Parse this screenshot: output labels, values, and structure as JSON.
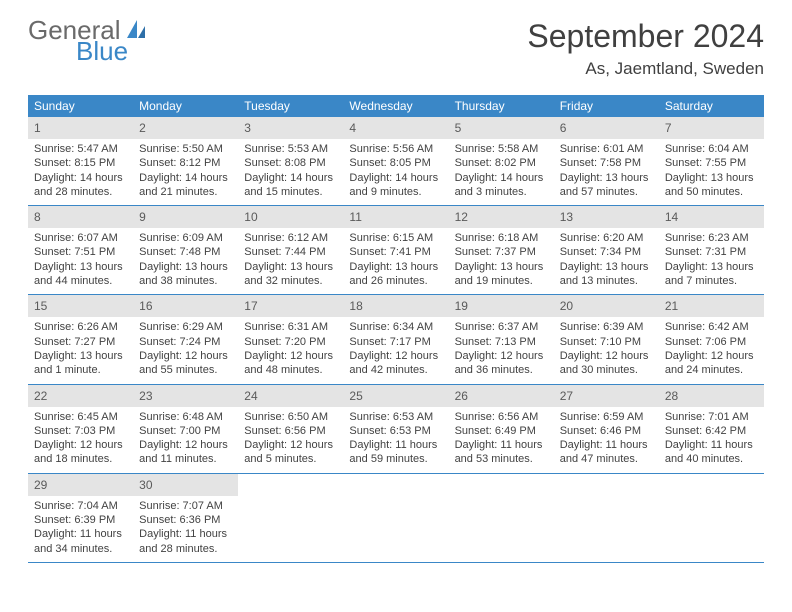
{
  "logo": {
    "general": "General",
    "blue": "Blue"
  },
  "title": "September 2024",
  "location": "As, Jaemtland, Sweden",
  "colors": {
    "header_bg": "#3a87c7",
    "daynum_bg": "#e4e4e4",
    "text": "#424242",
    "rule": "#3a87c7"
  },
  "weekdays": [
    "Sunday",
    "Monday",
    "Tuesday",
    "Wednesday",
    "Thursday",
    "Friday",
    "Saturday"
  ],
  "days": {
    "d1": {
      "n": "1",
      "sr": "Sunrise: 5:47 AM",
      "ss": "Sunset: 8:15 PM",
      "dl1": "Daylight: 14 hours",
      "dl2": "and 28 minutes."
    },
    "d2": {
      "n": "2",
      "sr": "Sunrise: 5:50 AM",
      "ss": "Sunset: 8:12 PM",
      "dl1": "Daylight: 14 hours",
      "dl2": "and 21 minutes."
    },
    "d3": {
      "n": "3",
      "sr": "Sunrise: 5:53 AM",
      "ss": "Sunset: 8:08 PM",
      "dl1": "Daylight: 14 hours",
      "dl2": "and 15 minutes."
    },
    "d4": {
      "n": "4",
      "sr": "Sunrise: 5:56 AM",
      "ss": "Sunset: 8:05 PM",
      "dl1": "Daylight: 14 hours",
      "dl2": "and 9 minutes."
    },
    "d5": {
      "n": "5",
      "sr": "Sunrise: 5:58 AM",
      "ss": "Sunset: 8:02 PM",
      "dl1": "Daylight: 14 hours",
      "dl2": "and 3 minutes."
    },
    "d6": {
      "n": "6",
      "sr": "Sunrise: 6:01 AM",
      "ss": "Sunset: 7:58 PM",
      "dl1": "Daylight: 13 hours",
      "dl2": "and 57 minutes."
    },
    "d7": {
      "n": "7",
      "sr": "Sunrise: 6:04 AM",
      "ss": "Sunset: 7:55 PM",
      "dl1": "Daylight: 13 hours",
      "dl2": "and 50 minutes."
    },
    "d8": {
      "n": "8",
      "sr": "Sunrise: 6:07 AM",
      "ss": "Sunset: 7:51 PM",
      "dl1": "Daylight: 13 hours",
      "dl2": "and 44 minutes."
    },
    "d9": {
      "n": "9",
      "sr": "Sunrise: 6:09 AM",
      "ss": "Sunset: 7:48 PM",
      "dl1": "Daylight: 13 hours",
      "dl2": "and 38 minutes."
    },
    "d10": {
      "n": "10",
      "sr": "Sunrise: 6:12 AM",
      "ss": "Sunset: 7:44 PM",
      "dl1": "Daylight: 13 hours",
      "dl2": "and 32 minutes."
    },
    "d11": {
      "n": "11",
      "sr": "Sunrise: 6:15 AM",
      "ss": "Sunset: 7:41 PM",
      "dl1": "Daylight: 13 hours",
      "dl2": "and 26 minutes."
    },
    "d12": {
      "n": "12",
      "sr": "Sunrise: 6:18 AM",
      "ss": "Sunset: 7:37 PM",
      "dl1": "Daylight: 13 hours",
      "dl2": "and 19 minutes."
    },
    "d13": {
      "n": "13",
      "sr": "Sunrise: 6:20 AM",
      "ss": "Sunset: 7:34 PM",
      "dl1": "Daylight: 13 hours",
      "dl2": "and 13 minutes."
    },
    "d14": {
      "n": "14",
      "sr": "Sunrise: 6:23 AM",
      "ss": "Sunset: 7:31 PM",
      "dl1": "Daylight: 13 hours",
      "dl2": "and 7 minutes."
    },
    "d15": {
      "n": "15",
      "sr": "Sunrise: 6:26 AM",
      "ss": "Sunset: 7:27 PM",
      "dl1": "Daylight: 13 hours",
      "dl2": "and 1 minute."
    },
    "d16": {
      "n": "16",
      "sr": "Sunrise: 6:29 AM",
      "ss": "Sunset: 7:24 PM",
      "dl1": "Daylight: 12 hours",
      "dl2": "and 55 minutes."
    },
    "d17": {
      "n": "17",
      "sr": "Sunrise: 6:31 AM",
      "ss": "Sunset: 7:20 PM",
      "dl1": "Daylight: 12 hours",
      "dl2": "and 48 minutes."
    },
    "d18": {
      "n": "18",
      "sr": "Sunrise: 6:34 AM",
      "ss": "Sunset: 7:17 PM",
      "dl1": "Daylight: 12 hours",
      "dl2": "and 42 minutes."
    },
    "d19": {
      "n": "19",
      "sr": "Sunrise: 6:37 AM",
      "ss": "Sunset: 7:13 PM",
      "dl1": "Daylight: 12 hours",
      "dl2": "and 36 minutes."
    },
    "d20": {
      "n": "20",
      "sr": "Sunrise: 6:39 AM",
      "ss": "Sunset: 7:10 PM",
      "dl1": "Daylight: 12 hours",
      "dl2": "and 30 minutes."
    },
    "d21": {
      "n": "21",
      "sr": "Sunrise: 6:42 AM",
      "ss": "Sunset: 7:06 PM",
      "dl1": "Daylight: 12 hours",
      "dl2": "and 24 minutes."
    },
    "d22": {
      "n": "22",
      "sr": "Sunrise: 6:45 AM",
      "ss": "Sunset: 7:03 PM",
      "dl1": "Daylight: 12 hours",
      "dl2": "and 18 minutes."
    },
    "d23": {
      "n": "23",
      "sr": "Sunrise: 6:48 AM",
      "ss": "Sunset: 7:00 PM",
      "dl1": "Daylight: 12 hours",
      "dl2": "and 11 minutes."
    },
    "d24": {
      "n": "24",
      "sr": "Sunrise: 6:50 AM",
      "ss": "Sunset: 6:56 PM",
      "dl1": "Daylight: 12 hours",
      "dl2": "and 5 minutes."
    },
    "d25": {
      "n": "25",
      "sr": "Sunrise: 6:53 AM",
      "ss": "Sunset: 6:53 PM",
      "dl1": "Daylight: 11 hours",
      "dl2": "and 59 minutes."
    },
    "d26": {
      "n": "26",
      "sr": "Sunrise: 6:56 AM",
      "ss": "Sunset: 6:49 PM",
      "dl1": "Daylight: 11 hours",
      "dl2": "and 53 minutes."
    },
    "d27": {
      "n": "27",
      "sr": "Sunrise: 6:59 AM",
      "ss": "Sunset: 6:46 PM",
      "dl1": "Daylight: 11 hours",
      "dl2": "and 47 minutes."
    },
    "d28": {
      "n": "28",
      "sr": "Sunrise: 7:01 AM",
      "ss": "Sunset: 6:42 PM",
      "dl1": "Daylight: 11 hours",
      "dl2": "and 40 minutes."
    },
    "d29": {
      "n": "29",
      "sr": "Sunrise: 7:04 AM",
      "ss": "Sunset: 6:39 PM",
      "dl1": "Daylight: 11 hours",
      "dl2": "and 34 minutes."
    },
    "d30": {
      "n": "30",
      "sr": "Sunrise: 7:07 AM",
      "ss": "Sunset: 6:36 PM",
      "dl1": "Daylight: 11 hours",
      "dl2": "and 28 minutes."
    }
  }
}
